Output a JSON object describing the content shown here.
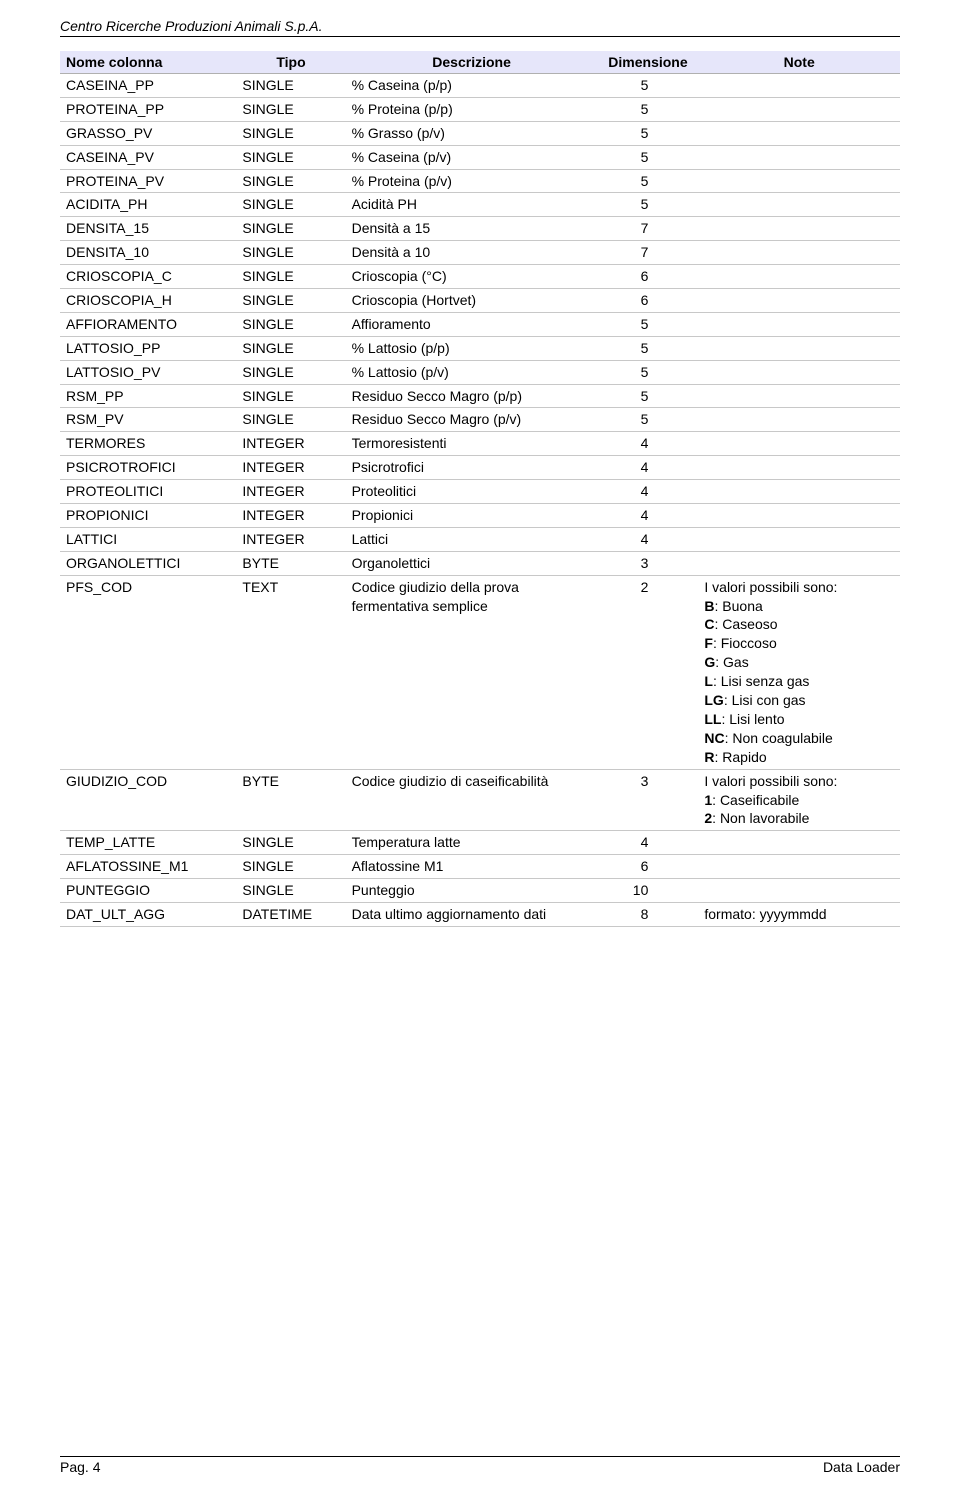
{
  "header": "Centro Ricerche Produzioni Animali S.p.A.",
  "table": {
    "columns": [
      "Nome colonna",
      "Tipo",
      "Descrizione",
      "Dimensione",
      "Note"
    ],
    "rows": [
      {
        "nome": "CASEINA_PP",
        "tipo": "SINGLE",
        "desc": "% Caseina (p/p)",
        "dim": "5",
        "note": ""
      },
      {
        "nome": "PROTEINA_PP",
        "tipo": "SINGLE",
        "desc": "% Proteina (p/p)",
        "dim": "5",
        "note": ""
      },
      {
        "nome": "GRASSO_PV",
        "tipo": "SINGLE",
        "desc": "% Grasso (p/v)",
        "dim": "5",
        "note": ""
      },
      {
        "nome": "CASEINA_PV",
        "tipo": "SINGLE",
        "desc": "% Caseina (p/v)",
        "dim": "5",
        "note": ""
      },
      {
        "nome": "PROTEINA_PV",
        "tipo": "SINGLE",
        "desc": "% Proteina (p/v)",
        "dim": "5",
        "note": ""
      },
      {
        "nome": "ACIDITA_PH",
        "tipo": "SINGLE",
        "desc": "Acidità PH",
        "dim": "5",
        "note": ""
      },
      {
        "nome": "DENSITA_15",
        "tipo": "SINGLE",
        "desc": "Densità a 15",
        "dim": "7",
        "note": ""
      },
      {
        "nome": "DENSITA_10",
        "tipo": "SINGLE",
        "desc": "Densità a 10",
        "dim": "7",
        "note": ""
      },
      {
        "nome": "CRIOSCOPIA_C",
        "tipo": "SINGLE",
        "desc": "Crioscopia (°C)",
        "dim": "6",
        "note": ""
      },
      {
        "nome": "CRIOSCOPIA_H",
        "tipo": "SINGLE",
        "desc": "Crioscopia (Hortvet)",
        "dim": "6",
        "note": ""
      },
      {
        "nome": "AFFIORAMENTO",
        "tipo": "SINGLE",
        "desc": "Affioramento",
        "dim": "5",
        "note": ""
      },
      {
        "nome": "LATTOSIO_PP",
        "tipo": "SINGLE",
        "desc": "% Lattosio (p/p)",
        "dim": "5",
        "note": ""
      },
      {
        "nome": "LATTOSIO_PV",
        "tipo": "SINGLE",
        "desc": "% Lattosio (p/v)",
        "dim": "5",
        "note": ""
      },
      {
        "nome": "RSM_PP",
        "tipo": "SINGLE",
        "desc": "Residuo Secco Magro (p/p)",
        "dim": "5",
        "note": ""
      },
      {
        "nome": "RSM_PV",
        "tipo": "SINGLE",
        "desc": "Residuo Secco Magro (p/v)",
        "dim": "5",
        "note": ""
      },
      {
        "nome": "TERMORES",
        "tipo": "INTEGER",
        "desc": "Termoresistenti",
        "dim": "4",
        "note": ""
      },
      {
        "nome": "PSICROTROFICI",
        "tipo": "INTEGER",
        "desc": "Psicrotrofici",
        "dim": "4",
        "note": ""
      },
      {
        "nome": "PROTEOLITICI",
        "tipo": "INTEGER",
        "desc": "Proteolitici",
        "dim": "4",
        "note": ""
      },
      {
        "nome": "PROPIONICI",
        "tipo": "INTEGER",
        "desc": "Propionici",
        "dim": "4",
        "note": ""
      },
      {
        "nome": "LATTICI",
        "tipo": "INTEGER",
        "desc": "Lattici",
        "dim": "4",
        "note": ""
      },
      {
        "nome": "ORGANOLETTICI",
        "tipo": "BYTE",
        "desc": "Organolettici",
        "dim": "3",
        "note": ""
      },
      {
        "nome": "PFS_COD",
        "tipo": "TEXT",
        "desc": "Codice giudizio della prova fermentativa semplice",
        "dim": "2",
        "note": "pfs"
      },
      {
        "nome": "GIUDIZIO_COD",
        "tipo": "BYTE",
        "desc": "Codice giudizio di caseificabilità",
        "dim": "3",
        "note": "giudizio"
      },
      {
        "nome": "TEMP_LATTE",
        "tipo": "SINGLE",
        "desc": "Temperatura latte",
        "dim": "4",
        "note": ""
      },
      {
        "nome": "AFLATOSSINE_M1",
        "tipo": "SINGLE",
        "desc": "Aflatossine M1",
        "dim": "6",
        "note": ""
      },
      {
        "nome": "PUNTEGGIO",
        "tipo": "SINGLE",
        "desc": "Punteggio",
        "dim": "10",
        "note": ""
      },
      {
        "nome": "DAT_ULT_AGG",
        "tipo": "DATETIME",
        "desc": "Data ultimo aggiornamento dati",
        "dim": "8",
        "note": "dat"
      }
    ]
  },
  "notes": {
    "pfs": {
      "intro": "I valori possibili sono:",
      "items": [
        {
          "code": "B",
          "label": ": Buona"
        },
        {
          "code": "C",
          "label": ": Caseoso"
        },
        {
          "code": "F",
          "label": ": Fioccoso"
        },
        {
          "code": "G",
          "label": ": Gas"
        },
        {
          "code": "L",
          "label": ": Lisi senza gas"
        },
        {
          "code": "LG",
          "label": ": Lisi con gas"
        },
        {
          "code": "LL",
          "label": ": Lisi lento"
        },
        {
          "code": "NC",
          "label": ": Non coagulabile"
        },
        {
          "code": "R",
          "label": ": Rapido"
        }
      ]
    },
    "giudizio": {
      "intro": "I valori possibili sono:",
      "items": [
        {
          "code": "1",
          "label": ": Caseificabile"
        },
        {
          "code": "2",
          "label": ": Non lavorabile"
        }
      ]
    },
    "dat": {
      "text": "formato: yyyymmdd"
    }
  },
  "footer": {
    "left": "Pag. 4",
    "right": "Data Loader"
  },
  "colors": {
    "header_bg": "#e6e6fa",
    "border": "#c8c8c8",
    "text": "#000000",
    "page_bg": "#ffffff"
  }
}
